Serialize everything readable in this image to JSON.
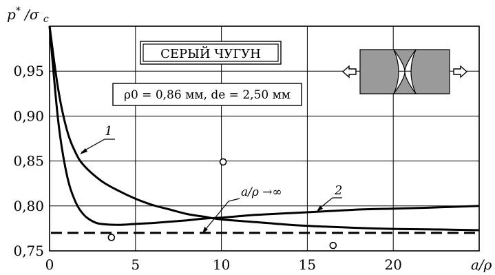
{
  "chart_data": {
    "type": "line",
    "ylabel": "p* /σ c",
    "xlabel": "a/ρ",
    "xlim": [
      0,
      25
    ],
    "ylim": [
      0.75,
      1.0
    ],
    "x_ticks": [
      {
        "value": 0,
        "label": "0"
      },
      {
        "value": 5,
        "label": "5"
      },
      {
        "value": 10,
        "label": "10"
      },
      {
        "value": 15,
        "label": "15"
      },
      {
        "value": 20,
        "label": "20"
      }
    ],
    "y_ticks": [
      {
        "value": 0.75,
        "label": "0,75"
      },
      {
        "value": 0.8,
        "label": "0,80"
      },
      {
        "value": 0.85,
        "label": "0,85"
      },
      {
        "value": 0.9,
        "label": "0,90"
      },
      {
        "value": 0.95,
        "label": "0,95"
      }
    ],
    "grid": true,
    "series": [
      {
        "name": "1",
        "points": [
          [
            0,
            1.0
          ],
          [
            0.5,
            0.93
          ],
          [
            1,
            0.885
          ],
          [
            1.5,
            0.86
          ],
          [
            2,
            0.845
          ],
          [
            3,
            0.828
          ],
          [
            4,
            0.817
          ],
          [
            5,
            0.808
          ],
          [
            6,
            0.801
          ],
          [
            7,
            0.796
          ],
          [
            8,
            0.791
          ],
          [
            9,
            0.788
          ],
          [
            10,
            0.785
          ],
          [
            12,
            0.782
          ],
          [
            14,
            0.779
          ],
          [
            16,
            0.777
          ],
          [
            18,
            0.7755
          ],
          [
            20,
            0.7745
          ],
          [
            22,
            0.774
          ],
          [
            25,
            0.773
          ]
        ]
      },
      {
        "name": "2",
        "points": [
          [
            0,
            1.0
          ],
          [
            0.5,
            0.895
          ],
          [
            1,
            0.835
          ],
          [
            1.5,
            0.805
          ],
          [
            2,
            0.79
          ],
          [
            2.5,
            0.783
          ],
          [
            3,
            0.78
          ],
          [
            4,
            0.779
          ],
          [
            5,
            0.78
          ],
          [
            6,
            0.781
          ],
          [
            7,
            0.7825
          ],
          [
            8,
            0.784
          ],
          [
            9,
            0.786
          ],
          [
            10,
            0.787
          ],
          [
            12,
            0.79
          ],
          [
            14,
            0.792
          ],
          [
            16,
            0.794
          ],
          [
            18,
            0.796
          ],
          [
            20,
            0.797
          ],
          [
            22,
            0.798
          ],
          [
            25,
            0.8
          ]
        ]
      }
    ],
    "asymptote": {
      "label": "a/ρ →∞",
      "y": 0.77
    },
    "experimental_points": [
      [
        3.6,
        0.765
      ],
      [
        10.1,
        0.849
      ],
      [
        16.5,
        0.756
      ]
    ],
    "annotations": {
      "material": "СЕРЫЙ ЧУГУН",
      "params": "ρ0 = 0,86 мм, de = 2,50 мм"
    }
  }
}
